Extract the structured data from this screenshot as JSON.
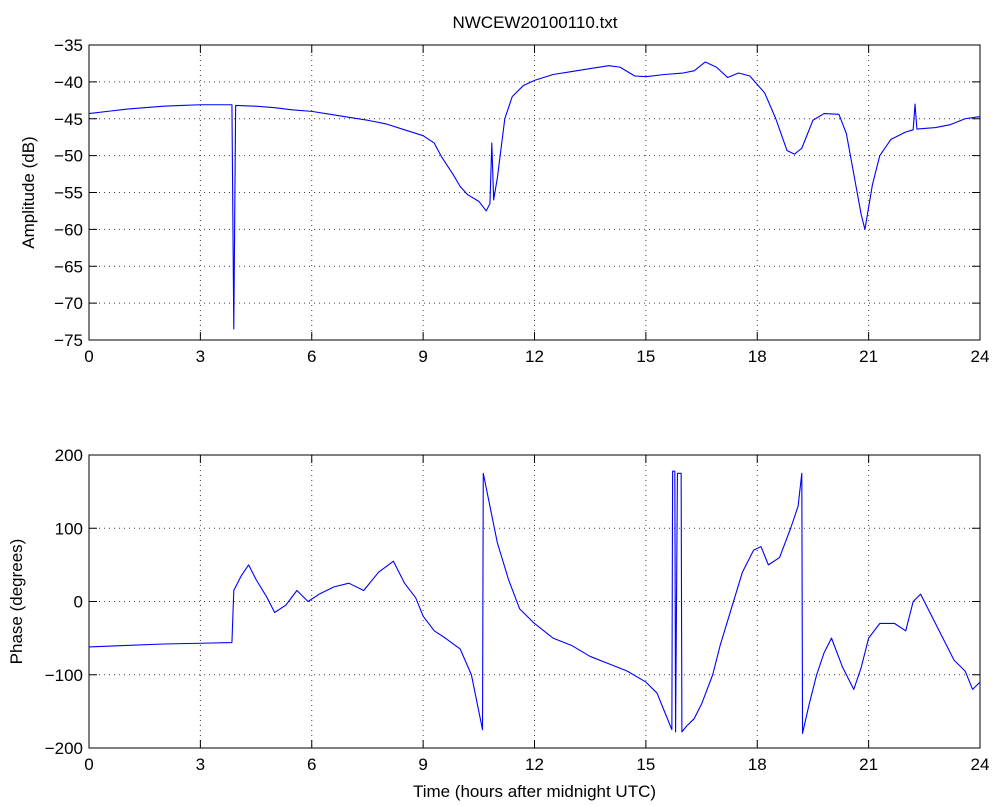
{
  "figure_title": "NWCEW20100110.txt",
  "colors": {
    "line": "#0000ff",
    "background": "#ffffff",
    "axes": "#000000"
  },
  "chart_data": [
    {
      "type": "line",
      "title": "NWCEW20100110.txt",
      "xlabel": "",
      "ylabel": "Amplitude (dB)",
      "xlim": [
        0,
        24
      ],
      "ylim": [
        -75,
        -35
      ],
      "xticks": [
        0,
        3,
        6,
        9,
        12,
        15,
        18,
        21,
        24
      ],
      "yticks": [
        -75,
        -70,
        -65,
        -60,
        -55,
        -50,
        -45,
        -40,
        -35
      ],
      "xtick_labels": [
        "0",
        "3",
        "6",
        "9",
        "12",
        "15",
        "18",
        "21",
        "24"
      ],
      "ytick_labels": [
        "−75",
        "−70",
        "−65",
        "−60",
        "−55",
        "−50",
        "−45",
        "−40",
        "−35"
      ],
      "grid": true,
      "legend": "none",
      "series": [
        {
          "color": "#0000ff",
          "points": [
            [
              0,
              -44.3
            ],
            [
              0.5,
              -44.0
            ],
            [
              1,
              -43.7
            ],
            [
              1.5,
              -43.5
            ],
            [
              2,
              -43.3
            ],
            [
              2.5,
              -43.2
            ],
            [
              3,
              -43.1
            ],
            [
              3.5,
              -43.1
            ],
            [
              3.85,
              -43.1
            ],
            [
              3.9,
              -73.5
            ],
            [
              3.95,
              -43.2
            ],
            [
              4.5,
              -43.3
            ],
            [
              5,
              -43.5
            ],
            [
              5.5,
              -43.8
            ],
            [
              6,
              -44.0
            ],
            [
              6.5,
              -44.4
            ],
            [
              7,
              -44.8
            ],
            [
              7.5,
              -45.2
            ],
            [
              8,
              -45.7
            ],
            [
              8.5,
              -46.5
            ],
            [
              9,
              -47.3
            ],
            [
              9.3,
              -48.3
            ],
            [
              9.5,
              -50.2
            ],
            [
              9.8,
              -52.5
            ],
            [
              10,
              -54.2
            ],
            [
              10.2,
              -55.3
            ],
            [
              10.5,
              -56.2
            ],
            [
              10.7,
              -57.5
            ],
            [
              10.8,
              -56.5
            ],
            [
              10.85,
              -48.3
            ],
            [
              10.9,
              -56.0
            ],
            [
              11.0,
              -53.0
            ],
            [
              11.1,
              -49.0
            ],
            [
              11.2,
              -45.0
            ],
            [
              11.4,
              -42.0
            ],
            [
              11.7,
              -40.5
            ],
            [
              12,
              -39.8
            ],
            [
              12.5,
              -39.0
            ],
            [
              13,
              -38.6
            ],
            [
              13.5,
              -38.2
            ],
            [
              14,
              -37.8
            ],
            [
              14.3,
              -38.0
            ],
            [
              14.7,
              -39.2
            ],
            [
              15,
              -39.3
            ],
            [
              15.5,
              -39.0
            ],
            [
              16,
              -38.8
            ],
            [
              16.3,
              -38.5
            ],
            [
              16.6,
              -37.3
            ],
            [
              16.9,
              -38.0
            ],
            [
              17.2,
              -39.4
            ],
            [
              17.5,
              -38.8
            ],
            [
              17.8,
              -39.2
            ],
            [
              18.2,
              -41.5
            ],
            [
              18.5,
              -45.0
            ],
            [
              18.8,
              -49.3
            ],
            [
              19.0,
              -49.8
            ],
            [
              19.2,
              -49.0
            ],
            [
              19.5,
              -45.2
            ],
            [
              19.8,
              -44.3
            ],
            [
              20.2,
              -44.4
            ],
            [
              20.4,
              -47.0
            ],
            [
              20.6,
              -52.5
            ],
            [
              20.8,
              -58.0
            ],
            [
              20.9,
              -60.0
            ],
            [
              21.1,
              -54.0
            ],
            [
              21.3,
              -50.0
            ],
            [
              21.6,
              -47.8
            ],
            [
              22.0,
              -46.8
            ],
            [
              22.2,
              -46.5
            ],
            [
              22.25,
              -43.0
            ],
            [
              22.3,
              -46.4
            ],
            [
              22.8,
              -46.2
            ],
            [
              23.2,
              -45.8
            ],
            [
              23.6,
              -45.0
            ],
            [
              24,
              -44.7
            ]
          ]
        }
      ]
    },
    {
      "type": "line",
      "title": "",
      "xlabel": "Time (hours after midnight UTC)",
      "ylabel": "Phase (degrees)",
      "xlim": [
        0,
        24
      ],
      "ylim": [
        -200,
        200
      ],
      "xticks": [
        0,
        3,
        6,
        9,
        12,
        15,
        18,
        21,
        24
      ],
      "yticks": [
        -200,
        -100,
        0,
        100,
        200
      ],
      "xtick_labels": [
        "0",
        "3",
        "6",
        "9",
        "12",
        "15",
        "18",
        "21",
        "24"
      ],
      "ytick_labels": [
        "−200",
        "−100",
        "0",
        "100",
        "200"
      ],
      "grid": true,
      "legend": "none",
      "series": [
        {
          "color": "#0000ff",
          "points": [
            [
              0,
              -62
            ],
            [
              1,
              -60
            ],
            [
              2,
              -58
            ],
            [
              3,
              -57
            ],
            [
              3.85,
              -56
            ],
            [
              3.9,
              15
            ],
            [
              4.1,
              35
            ],
            [
              4.3,
              50
            ],
            [
              4.5,
              30
            ],
            [
              4.8,
              5
            ],
            [
              5,
              -15
            ],
            [
              5.3,
              -5
            ],
            [
              5.6,
              15
            ],
            [
              5.9,
              0
            ],
            [
              6.2,
              10
            ],
            [
              6.6,
              20
            ],
            [
              7,
              25
            ],
            [
              7.4,
              15
            ],
            [
              7.8,
              40
            ],
            [
              8.2,
              55
            ],
            [
              8.5,
              25
            ],
            [
              8.8,
              5
            ],
            [
              9.0,
              -20
            ],
            [
              9.3,
              -40
            ],
            [
              9.6,
              -50
            ],
            [
              10.0,
              -65
            ],
            [
              10.3,
              -100
            ],
            [
              10.5,
              -150
            ],
            [
              10.6,
              -175
            ],
            [
              10.62,
              175
            ],
            [
              10.8,
              130
            ],
            [
              11.0,
              80
            ],
            [
              11.3,
              30
            ],
            [
              11.6,
              -10
            ],
            [
              12,
              -30
            ],
            [
              12.5,
              -50
            ],
            [
              13,
              -60
            ],
            [
              13.5,
              -75
            ],
            [
              14,
              -85
            ],
            [
              14.5,
              -95
            ],
            [
              15,
              -110
            ],
            [
              15.3,
              -125
            ],
            [
              15.5,
              -150
            ],
            [
              15.7,
              -175
            ],
            [
              15.72,
              178
            ],
            [
              15.78,
              178
            ],
            [
              15.8,
              -178
            ],
            [
              15.85,
              175
            ],
            [
              15.95,
              175
            ],
            [
              15.97,
              -178
            ],
            [
              16.1,
              -170
            ],
            [
              16.3,
              -160
            ],
            [
              16.5,
              -140
            ],
            [
              16.8,
              -100
            ],
            [
              17.0,
              -60
            ],
            [
              17.3,
              -10
            ],
            [
              17.6,
              40
            ],
            [
              17.9,
              70
            ],
            [
              18.1,
              75
            ],
            [
              18.3,
              50
            ],
            [
              18.6,
              60
            ],
            [
              18.9,
              100
            ],
            [
              19.1,
              130
            ],
            [
              19.2,
              175
            ],
            [
              19.22,
              -180
            ],
            [
              19.4,
              -140
            ],
            [
              19.6,
              -100
            ],
            [
              19.8,
              -70
            ],
            [
              20.0,
              -50
            ],
            [
              20.3,
              -90
            ],
            [
              20.6,
              -120
            ],
            [
              20.8,
              -90
            ],
            [
              21.0,
              -50
            ],
            [
              21.3,
              -30
            ],
            [
              21.7,
              -30
            ],
            [
              22.0,
              -40
            ],
            [
              22.2,
              0
            ],
            [
              22.4,
              10
            ],
            [
              22.7,
              -20
            ],
            [
              23.0,
              -50
            ],
            [
              23.3,
              -80
            ],
            [
              23.6,
              -95
            ],
            [
              23.8,
              -120
            ],
            [
              24,
              -110
            ]
          ]
        }
      ]
    }
  ]
}
